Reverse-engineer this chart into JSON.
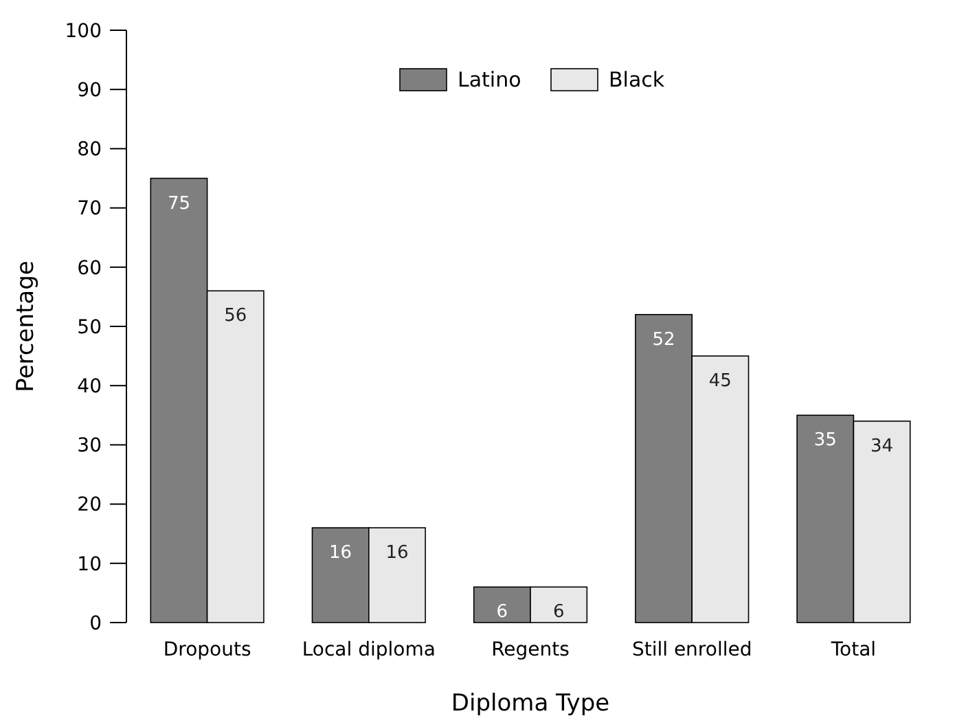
{
  "chart_data": {
    "type": "bar",
    "xlabel": "Diploma Type",
    "ylabel": "Percentage",
    "categories": [
      "Dropouts",
      "Local diploma",
      "Regents",
      "Still enrolled",
      "Total"
    ],
    "series": [
      {
        "name": "Latino",
        "color": "#7f7f7f",
        "values": [
          75,
          16,
          6,
          52,
          35
        ]
      },
      {
        "name": "Black",
        "color": "#e8e8e8",
        "values": [
          56,
          16,
          6,
          45,
          34
        ]
      }
    ],
    "ylim": [
      0,
      100
    ],
    "yticks": [
      0,
      10,
      20,
      30,
      40,
      50,
      60,
      70,
      80,
      90,
      100
    ],
    "data_labels": true,
    "legend": "top",
    "grid": false
  }
}
